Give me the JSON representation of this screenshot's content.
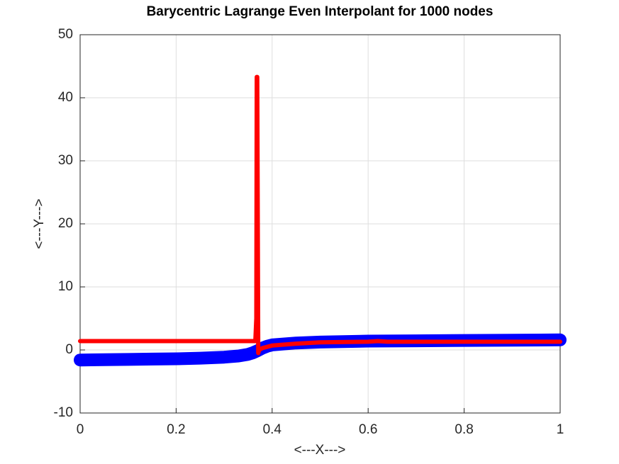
{
  "chart_data": {
    "type": "line",
    "title": "Barycentric Lagrange Even Interpolant for 1000 nodes",
    "xlabel": "<---X--->",
    "ylabel": "<---Y--->",
    "xlim": [
      0,
      1
    ],
    "xticks": [
      0,
      0.2,
      0.4,
      0.6,
      0.8,
      1
    ],
    "ylim": [
      -10,
      50
    ],
    "yticks": [
      -10,
      0,
      10,
      20,
      30,
      40,
      50
    ],
    "grid": true,
    "series": [
      {
        "color": "#0000ff",
        "x": [
          0,
          0.05,
          0.1,
          0.15,
          0.2,
          0.25,
          0.3,
          0.33,
          0.35,
          0.36,
          0.37,
          0.38,
          0.39,
          0.4,
          0.45,
          0.5,
          0.6,
          0.7,
          0.8,
          0.9,
          1.0
        ],
        "values": [
          -1.6,
          -1.55,
          -1.5,
          -1.45,
          -1.4,
          -1.3,
          -1.15,
          -0.95,
          -0.7,
          -0.45,
          -0.1,
          0.3,
          0.6,
          0.8,
          1.1,
          1.25,
          1.4,
          1.45,
          1.5,
          1.55,
          1.6
        ]
      },
      {
        "color": "#ff0000",
        "x": [
          0,
          0.1,
          0.2,
          0.3,
          0.365,
          0.367,
          0.368,
          0.369,
          0.371,
          0.373,
          0.38,
          0.4,
          0.45,
          0.5,
          0.6,
          0.62,
          0.64,
          0.7,
          0.8,
          0.9,
          1.0
        ],
        "values": [
          1.4,
          1.4,
          1.4,
          1.4,
          1.4,
          5,
          43.3,
          43.3,
          -0.5,
          0,
          0.3,
          0.7,
          1.0,
          1.2,
          1.3,
          1.4,
          1.3,
          1.3,
          1.3,
          1.3,
          1.3
        ]
      }
    ]
  }
}
